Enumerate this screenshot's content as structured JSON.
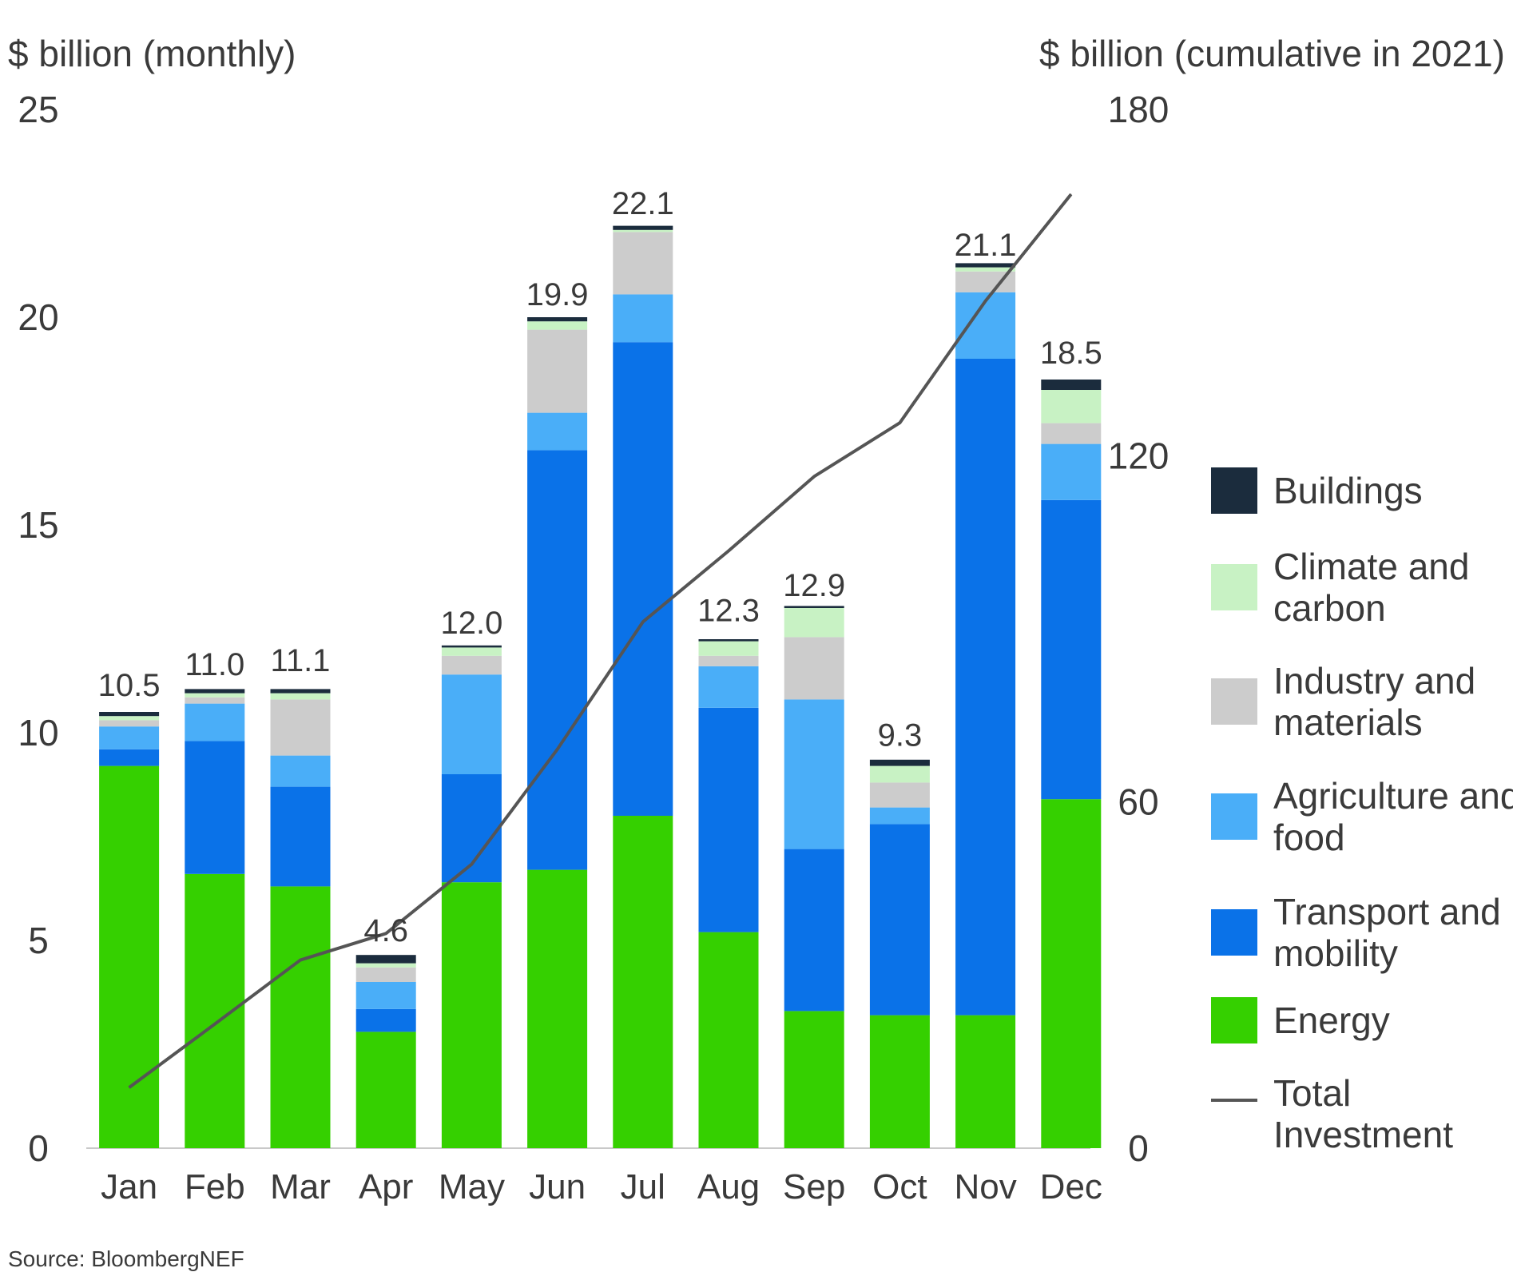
{
  "chart_data": {
    "type": "bar",
    "stacked": true,
    "y_left_label": "$ billion (monthly)",
    "y_right_label": "$ billion (cumulative in 2021)",
    "y_left_ticks": [
      "0",
      "5",
      "10",
      "15",
      "20",
      "25"
    ],
    "y_left_range": [
      0,
      25
    ],
    "y_right_ticks": [
      "0",
      "60",
      "120",
      "180"
    ],
    "y_right_range": [
      0,
      180
    ],
    "categories": [
      "Jan",
      "Feb",
      "Mar",
      "Apr",
      "May",
      "Jun",
      "Jul",
      "Aug",
      "Sep",
      "Oct",
      "Nov",
      "Dec"
    ],
    "series": [
      {
        "name": "Energy",
        "color": "#35d000",
        "values": [
          9.2,
          6.6,
          6.3,
          2.8,
          6.4,
          6.7,
          8.0,
          5.2,
          3.3,
          3.2,
          3.2,
          8.4
        ]
      },
      {
        "name": "Transport and mobility",
        "color": "#0a72e8",
        "values": [
          0.4,
          3.2,
          2.4,
          0.55,
          2.6,
          10.1,
          11.4,
          5.4,
          3.9,
          4.6,
          15.8,
          7.2
        ]
      },
      {
        "name": "Agriculture and food",
        "color": "#4aaef8",
        "values": [
          0.55,
          0.9,
          0.75,
          0.65,
          2.4,
          0.9,
          1.15,
          1.0,
          3.6,
          0.4,
          1.6,
          1.35
        ]
      },
      {
        "name": "Industry and materials",
        "color": "#cccccc",
        "values": [
          0.15,
          0.15,
          1.35,
          0.35,
          0.45,
          2.0,
          1.5,
          0.25,
          1.5,
          0.6,
          0.5,
          0.5
        ]
      },
      {
        "name": "Climate and carbon",
        "color": "#c8f2c4",
        "values": [
          0.1,
          0.1,
          0.15,
          0.1,
          0.2,
          0.2,
          0.05,
          0.35,
          0.7,
          0.4,
          0.1,
          0.8
        ]
      },
      {
        "name": "Buildings",
        "color": "#1b2c3d",
        "values": [
          0.1,
          0.1,
          0.1,
          0.2,
          0.05,
          0.1,
          0.1,
          0.05,
          0.05,
          0.15,
          0.1,
          0.25
        ]
      }
    ],
    "totals_labels": [
      "10.5",
      "11.0",
      "11.1",
      "4.6",
      "12.0",
      "19.9",
      "22.1",
      "12.3",
      "12.9",
      "9.3",
      "21.1",
      "18.5"
    ],
    "line_series": {
      "name": "Total Investment",
      "color": "#555555",
      "axis": "right",
      "values": [
        10.5,
        21.5,
        32.6,
        37.2,
        49.2,
        69.1,
        91.2,
        103.5,
        116.4,
        125.7,
        146.8,
        165.3
      ]
    },
    "legend": {
      "position": "right",
      "items": [
        {
          "label": "Buildings",
          "color": "#1b2c3d",
          "kind": "box"
        },
        {
          "label": "Climate and carbon",
          "color": "#c8f2c4",
          "kind": "box"
        },
        {
          "label": "Industry and materials",
          "color": "#cccccc",
          "kind": "box"
        },
        {
          "label": "Agriculture and food",
          "color": "#4aaef8",
          "kind": "box"
        },
        {
          "label": "Transport and mobility",
          "color": "#0a72e8",
          "kind": "box"
        },
        {
          "label": "Energy",
          "color": "#35d000",
          "kind": "box"
        },
        {
          "label": "Total Investment",
          "color": "#555555",
          "kind": "line"
        }
      ]
    },
    "grid": false
  },
  "source": "Source: BloombergNEF"
}
